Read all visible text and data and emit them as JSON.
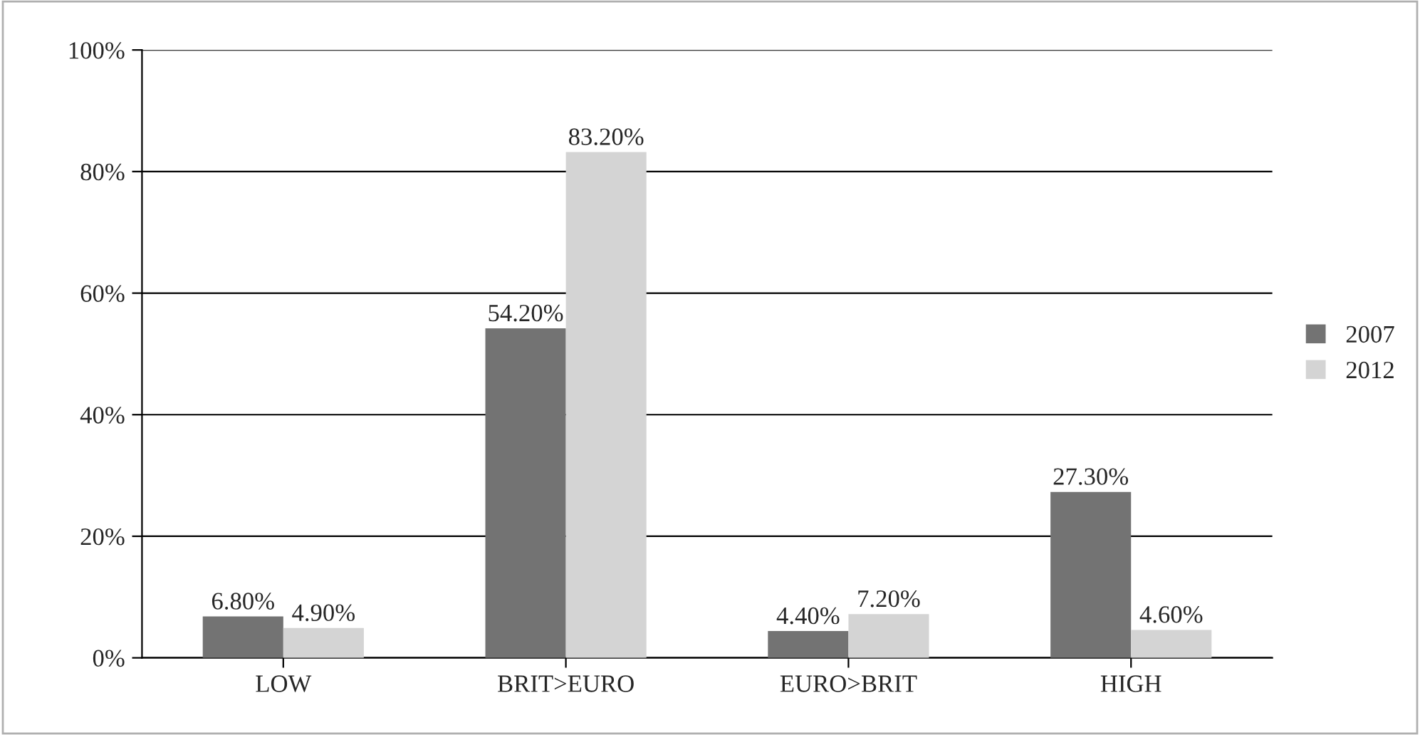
{
  "chart_data": {
    "type": "bar",
    "categories": [
      "LOW",
      "BRIT>EURO",
      "EURO>BRIT",
      "HIGH"
    ],
    "series": [
      {
        "name": "2007",
        "color": "#737373",
        "values": [
          6.8,
          54.2,
          4.4,
          27.3
        ],
        "value_labels": [
          "6.80%",
          "54.20%",
          "4.40%",
          "27.30%"
        ]
      },
      {
        "name": "2012",
        "color": "#d4d4d4",
        "values": [
          4.9,
          83.2,
          7.2,
          4.6
        ],
        "value_labels": [
          "4.90%",
          "83.20%",
          "7.20%",
          "4.60%"
        ]
      }
    ],
    "ylim": [
      0,
      100
    ],
    "yticks": [
      {
        "value": 0,
        "label": "0%"
      },
      {
        "value": 20,
        "label": "20%"
      },
      {
        "value": 40,
        "label": "40%"
      },
      {
        "value": 60,
        "label": "60%"
      },
      {
        "value": 80,
        "label": "80%"
      },
      {
        "value": 100,
        "label": "100%"
      }
    ],
    "grid": "y",
    "legend": "right"
  }
}
